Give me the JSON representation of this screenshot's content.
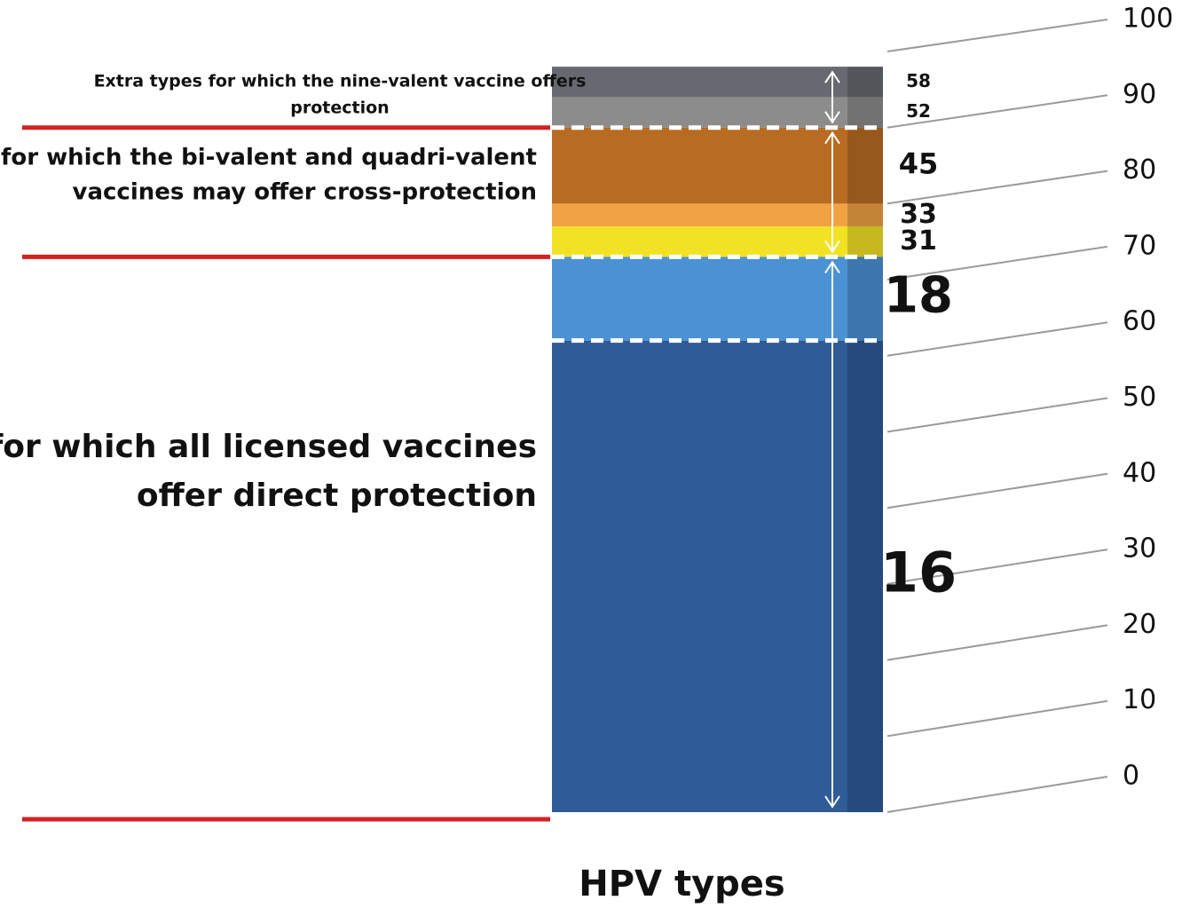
{
  "chart_data": {
    "type": "stacked_bar",
    "categories": [
      "HPV types"
    ],
    "series": [
      {
        "name": "16",
        "color": "#2f5b96",
        "values": [
          62
        ]
      },
      {
        "name": "18",
        "color": "#4b92d4",
        "values": [
          11
        ]
      },
      {
        "name": "31",
        "color": "#f2e224",
        "values": [
          4
        ]
      },
      {
        "name": "33",
        "color": "#f0a244",
        "values": [
          3
        ]
      },
      {
        "name": "45",
        "color": "#b86c22",
        "values": [
          10
        ]
      },
      {
        "name": "52",
        "color": "#8c8c8c",
        "values": [
          4
        ]
      },
      {
        "name": "58",
        "color": "#666a70",
        "values": [
          4
        ]
      }
    ],
    "ylim": [
      0,
      100
    ],
    "yticks": [
      0,
      10,
      20,
      30,
      40,
      50,
      60,
      70,
      80,
      90,
      100
    ],
    "annotations": [
      {
        "lines": [
          "Types for which all licensed vaccines",
          "offer direct protection"
        ]
      },
      {
        "lines": [
          "Extra types for which the bi-valent and quadri-valent",
          "vaccines may offer cross-protection"
        ]
      },
      {
        "lines": [
          "Extra types for which the nine-valent vaccine offers",
          "protection"
        ]
      }
    ]
  }
}
